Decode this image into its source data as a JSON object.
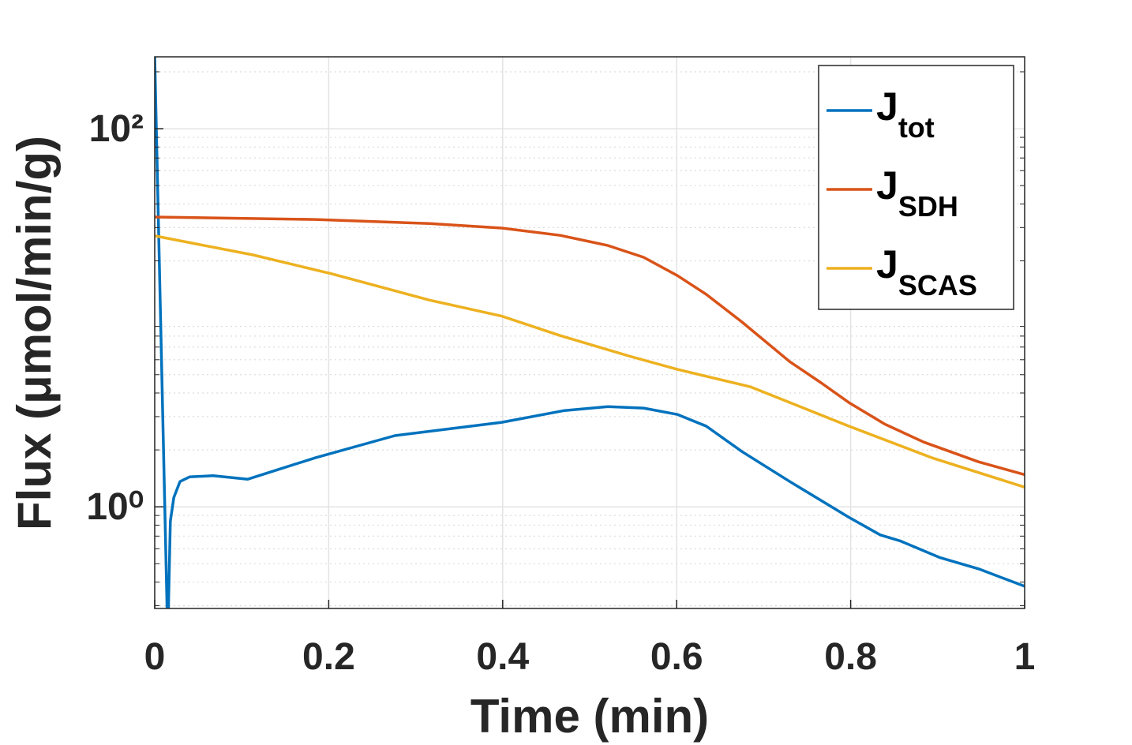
{
  "chart_data": {
    "type": "line",
    "x_label": "Time (min)",
    "y_label": "Flux (μmol/min/g)",
    "y_scale": "log",
    "grid": true,
    "minor_grid": true,
    "legend_position": "upper right",
    "xlim": [
      0,
      1
    ],
    "xticks": [
      0,
      0.2,
      0.4,
      0.6,
      0.8,
      1
    ],
    "ylim": [
      0.29,
      240
    ],
    "yticks": [
      {
        "value": 1,
        "label": "10⁰"
      },
      {
        "value": 100,
        "label": "10²"
      }
    ],
    "series": [
      {
        "name": "J",
        "subscript": "tot",
        "color": "#0072BD",
        "x": [
          0,
          0.015,
          0.018,
          0.022,
          0.029,
          0.04,
          0.067,
          0.107,
          0.185,
          0.276,
          0.399,
          0.471,
          0.521,
          0.562,
          0.601,
          0.634,
          0.675,
          0.73,
          0.798,
          0.834,
          0.857,
          0.902,
          0.947,
          0.975,
          1
        ],
        "values": [
          240,
          0.2,
          0.84,
          1.12,
          1.36,
          1.44,
          1.46,
          1.4,
          1.82,
          2.38,
          2.8,
          3.23,
          3.39,
          3.33,
          3.08,
          2.67,
          1.96,
          1.36,
          0.88,
          0.71,
          0.66,
          0.54,
          0.47,
          0.42,
          0.38
        ]
      },
      {
        "name": "J",
        "subscript": "SDH",
        "color": "#D95319",
        "x": [
          0,
          0.185,
          0.316,
          0.399,
          0.466,
          0.521,
          0.562,
          0.601,
          0.634,
          0.675,
          0.73,
          0.766,
          0.798,
          0.839,
          0.884,
          0.947,
          1
        ],
        "values": [
          34.1,
          33.1,
          31.5,
          29.8,
          27.3,
          24.1,
          20.9,
          16.7,
          13.3,
          9.5,
          5.86,
          4.53,
          3.56,
          2.74,
          2.2,
          1.73,
          1.48
        ]
      },
      {
        "name": "J",
        "subscript": "SCAS",
        "color": "#EDB120",
        "x": [
          0,
          0.113,
          0.203,
          0.316,
          0.399,
          0.466,
          0.548,
          0.601,
          0.685,
          0.798,
          0.893,
          1
        ],
        "values": [
          27.1,
          21.5,
          17.1,
          12.4,
          10.2,
          8.05,
          6.22,
          5.33,
          4.31,
          2.67,
          1.82,
          1.27
        ]
      }
    ]
  }
}
